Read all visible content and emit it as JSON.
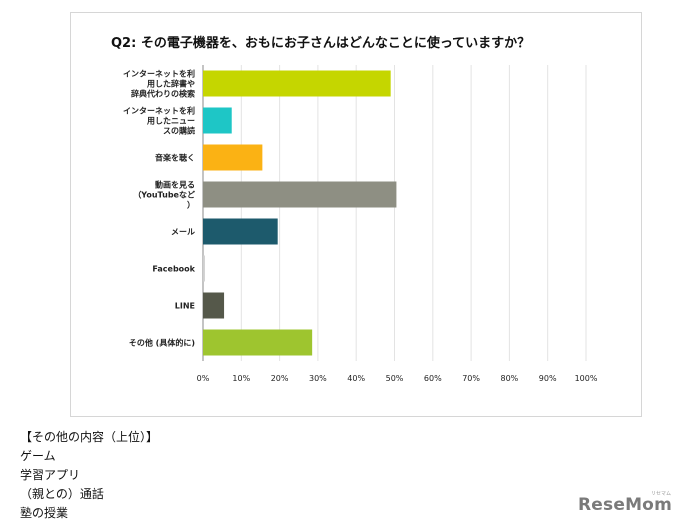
{
  "chart_data": {
    "type": "bar",
    "orientation": "horizontal",
    "title": "Q2: その電子機器を、おもにお子さんはどんなことに使っていますか？",
    "categories": [
      [
        "インターネットを利",
        "用した辞書や",
        "辞典代わりの検索"
      ],
      [
        "インターネットを利",
        "用したニュー",
        "スの購読"
      ],
      [
        "音楽を聴く"
      ],
      [
        "動画を見る",
        "（YouTubeなど",
        "）"
      ],
      [
        "メール"
      ],
      [
        "Facebook"
      ],
      [
        "LINE"
      ],
      [
        "その他 (具体的に)"
      ]
    ],
    "values": [
      49,
      7.5,
      15.5,
      50.5,
      19.5,
      0.5,
      5.5,
      28.5
    ],
    "colors": [
      "#c5d600",
      "#1ec6c6",
      "#fbb214",
      "#8e8f83",
      "#1d5a6c",
      "#cfcfcf",
      "#55584a",
      "#9ec52f"
    ],
    "xlim": [
      0,
      100
    ],
    "xticks": [
      "0%",
      "10%",
      "20%",
      "30%",
      "40%",
      "50%",
      "60%",
      "70%",
      "80%",
      "90%",
      "100%"
    ],
    "xlabel": "",
    "ylabel": "",
    "grid": true
  },
  "notes": {
    "heading": "【その他の内容（上位）】",
    "items": [
      "ゲーム",
      "学習アプリ",
      "（親との）通話",
      "塾の授業"
    ]
  },
  "logo": {
    "text": "ReseMom",
    "small": "リセマム"
  }
}
